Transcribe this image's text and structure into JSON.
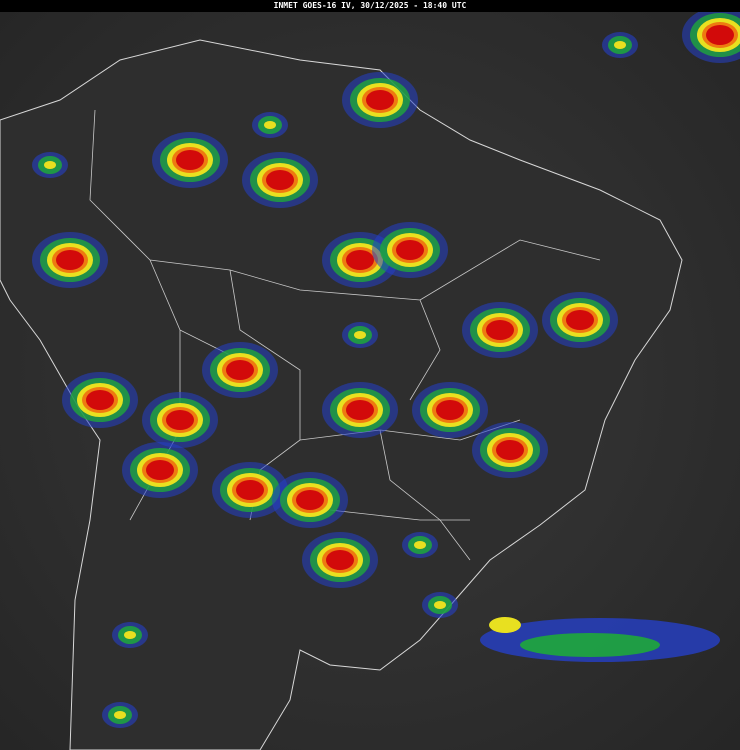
{
  "header": {
    "title": "INMET GOES-16 IV, 30/12/2025 - 18:40 UTC"
  }
}
